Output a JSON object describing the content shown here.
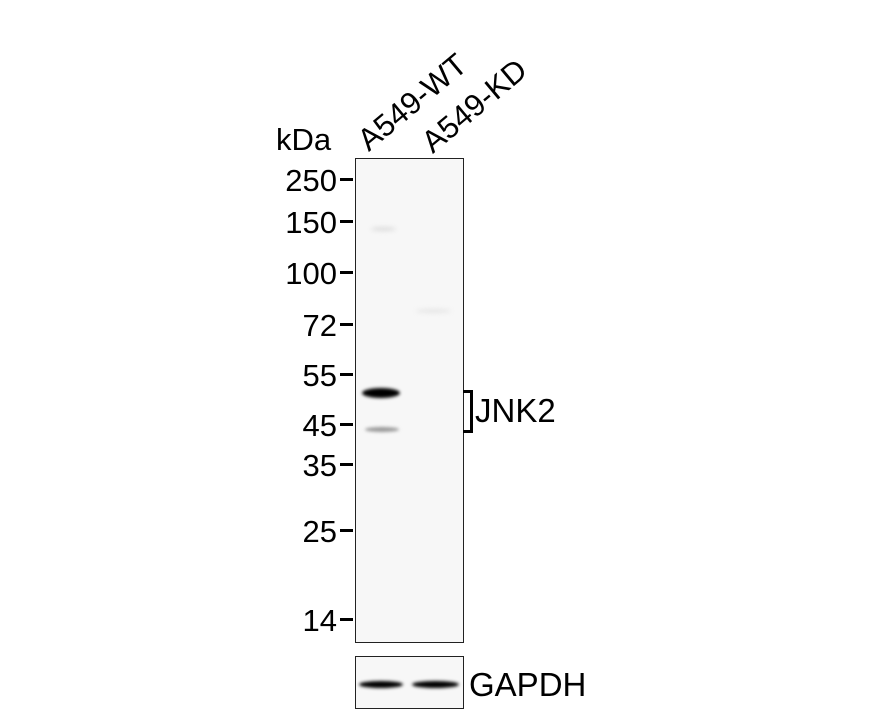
{
  "kda_label": "kDa",
  "lanes": [
    "A549-WT",
    "A549-KD"
  ],
  "markers": [
    "250",
    "150",
    "100",
    "72",
    "55",
    "45",
    "35",
    "25",
    "14"
  ],
  "target_label": "JNK2",
  "loading_control_label": "GAPDH"
}
